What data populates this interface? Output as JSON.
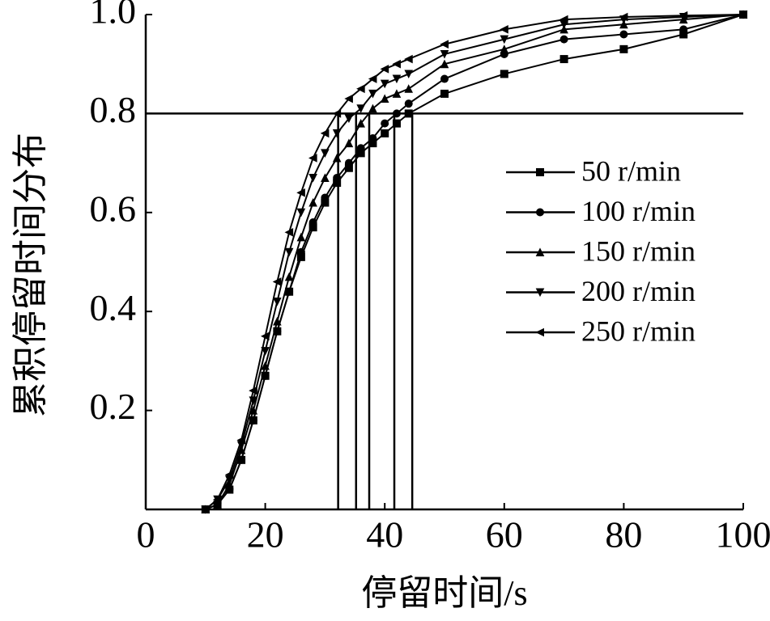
{
  "chart_data": {
    "type": "line",
    "xlabel": "停留时间/s",
    "ylabel": "累积停留时间分布",
    "x": [
      10,
      12,
      14,
      16,
      18,
      20,
      22,
      24,
      26,
      28,
      30,
      32,
      34,
      36,
      38,
      40,
      42,
      44,
      50,
      60,
      70,
      80,
      90,
      100
    ],
    "series": [
      {
        "name": "50 r/min",
        "color": "#000000",
        "marker": "square",
        "values": [
          0,
          0.01,
          0.04,
          0.1,
          0.18,
          0.27,
          0.36,
          0.44,
          0.51,
          0.57,
          0.62,
          0.66,
          0.69,
          0.72,
          0.74,
          0.76,
          0.78,
          0.8,
          0.84,
          0.88,
          0.91,
          0.93,
          0.96,
          1
        ]
      },
      {
        "name": "100 r/min",
        "color": "#000000",
        "marker": "circle",
        "values": [
          0,
          0.01,
          0.04,
          0.1,
          0.18,
          0.27,
          0.36,
          0.44,
          0.52,
          0.58,
          0.63,
          0.67,
          0.7,
          0.73,
          0.75,
          0.78,
          0.8,
          0.82,
          0.87,
          0.92,
          0.95,
          0.96,
          0.97,
          1
        ]
      },
      {
        "name": "150 r/min",
        "color": "#000000",
        "marker": "triangle-up",
        "values": [
          0,
          0.01,
          0.05,
          0.12,
          0.2,
          0.29,
          0.38,
          0.47,
          0.55,
          0.62,
          0.67,
          0.71,
          0.74,
          0.78,
          0.81,
          0.83,
          0.84,
          0.85,
          0.9,
          0.93,
          0.97,
          0.98,
          0.99,
          1
        ]
      },
      {
        "name": "200 r/min",
        "color": "#000000",
        "marker": "triangle-down",
        "values": [
          0,
          0.02,
          0.06,
          0.13,
          0.22,
          0.32,
          0.42,
          0.52,
          0.6,
          0.67,
          0.72,
          0.76,
          0.79,
          0.81,
          0.84,
          0.86,
          0.87,
          0.88,
          0.92,
          0.95,
          0.98,
          0.99,
          0.995,
          1
        ]
      },
      {
        "name": "250 r/min",
        "color": "#000000",
        "marker": "triangle-left",
        "values": [
          0,
          0.02,
          0.07,
          0.14,
          0.24,
          0.35,
          0.46,
          0.56,
          0.64,
          0.71,
          0.76,
          0.8,
          0.83,
          0.85,
          0.87,
          0.89,
          0.9,
          0.91,
          0.94,
          0.97,
          0.99,
          0.995,
          0.998,
          1
        ]
      }
    ],
    "reference_lines": {
      "y": 0.8,
      "x": [
        32.2,
        35.2,
        37.4,
        41.6,
        44.6
      ]
    },
    "xlim": [
      0,
      100
    ],
    "xticks": [
      0,
      20,
      40,
      60,
      80,
      100
    ],
    "ylim": [
      0,
      1
    ],
    "yticks": [
      0.2,
      0.4,
      0.6,
      0.8,
      {
        "value": 1,
        "label": "1.0"
      }
    ],
    "legend": "right",
    "grid": false
  }
}
